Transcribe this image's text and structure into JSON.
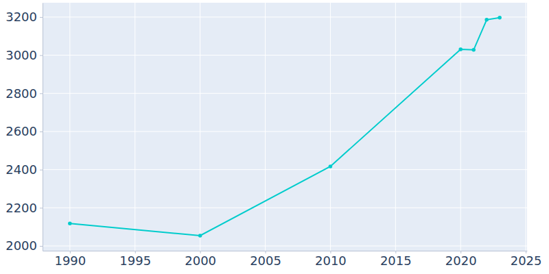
{
  "chart_data": {
    "type": "line",
    "x": [
      1990,
      2000,
      2010,
      2020,
      2021,
      2022,
      2023
    ],
    "values": [
      2118,
      2054,
      2417,
      3031,
      3028,
      3186,
      3197
    ],
    "color": "#00cccc",
    "xlim": [
      1987.9,
      2025.1
    ],
    "ylim": [
      1975,
      3275
    ],
    "xticks": [
      1990,
      1995,
      2000,
      2005,
      2010,
      2015,
      2020,
      2025
    ],
    "yticks": [
      2000,
      2200,
      2400,
      2600,
      2800,
      3000,
      3200
    ],
    "grid": true,
    "marker": "circle"
  }
}
